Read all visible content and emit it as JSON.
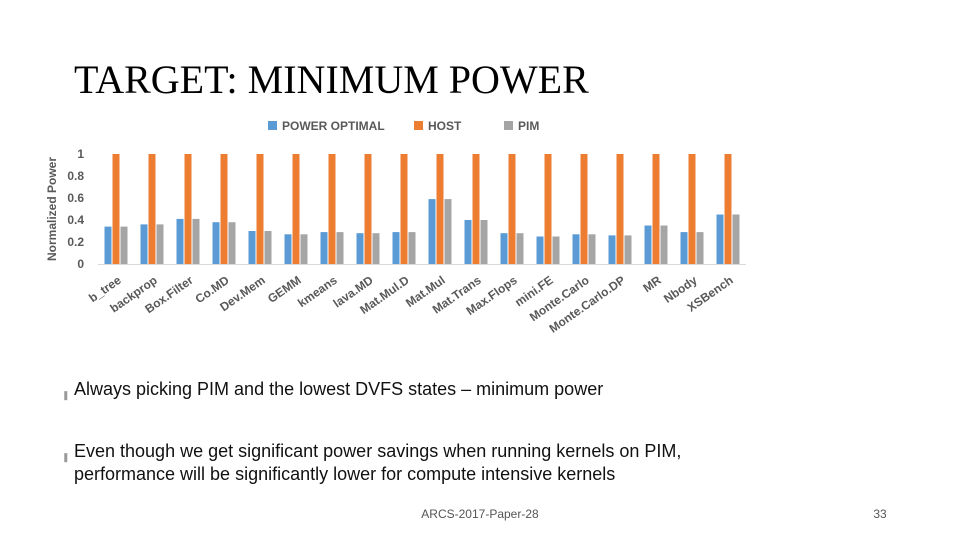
{
  "slide": {
    "title": "TARGET: MINIMUM POWER",
    "bullets": [
      "Always picking PIM and the lowest DVFS states – minimum power",
      "Even though we get significant power savings when running kernels on PIM, performance will be significantly lower for compute intensive kernels"
    ],
    "bullet_icon": "bullet-glyph",
    "footer": "ARCS-2017-Paper-28",
    "page_number": "33"
  },
  "chart_data": {
    "type": "bar",
    "ylabel": "Normalized Power",
    "xlabel": "",
    "ylim": [
      0,
      1
    ],
    "yticks": [
      "0",
      "0.2",
      "0.4",
      "0.6",
      "0.8",
      "1"
    ],
    "grid": false,
    "legend_position": "top",
    "categories": [
      "b_tree",
      "backprop",
      "Box.Filter",
      "Co.MD",
      "Dev.Mem",
      "GEMM",
      "kmeans",
      "lava.MD",
      "Mat.Mul.D",
      "Mat.Mul",
      "Mat.Trans",
      "Max.Flops",
      "mini.FE",
      "Monte.Carlo",
      "Monte.Carlo.DP",
      "MR",
      "Nbody",
      "XSBench"
    ],
    "series": [
      {
        "name": "POWER OPTIMAL",
        "color": "#5b9bd5",
        "values": [
          0.34,
          0.36,
          0.41,
          0.38,
          0.3,
          0.27,
          0.29,
          0.28,
          0.29,
          0.59,
          0.4,
          0.28,
          0.25,
          0.27,
          0.26,
          0.35,
          0.29,
          0.45
        ]
      },
      {
        "name": "HOST",
        "color": "#ed7d31",
        "values": [
          1,
          1,
          1,
          1,
          1,
          1,
          1,
          1,
          1,
          1,
          1,
          1,
          1,
          1,
          1,
          1,
          1,
          1
        ]
      },
      {
        "name": "PIM",
        "color": "#a5a5a5",
        "values": [
          0.34,
          0.36,
          0.41,
          0.38,
          0.3,
          0.27,
          0.29,
          0.28,
          0.29,
          0.59,
          0.4,
          0.28,
          0.25,
          0.27,
          0.26,
          0.35,
          0.29,
          0.45
        ]
      }
    ]
  }
}
